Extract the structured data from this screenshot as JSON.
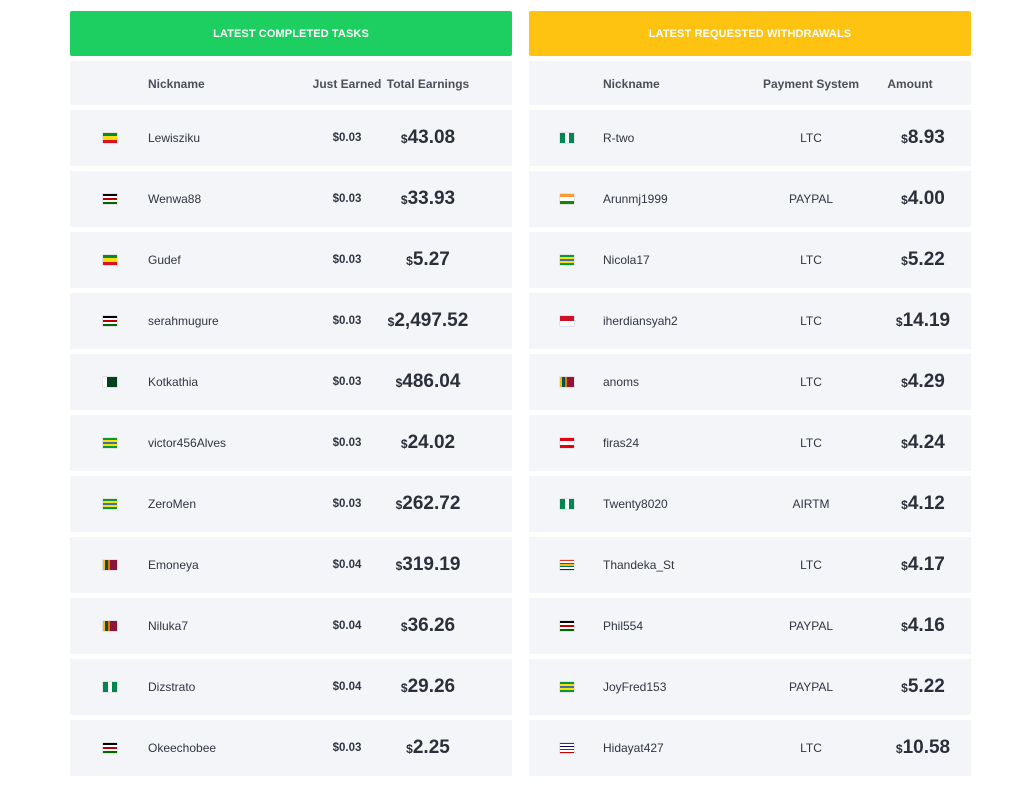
{
  "completed": {
    "title": "LATEST COMPLETED TASKS",
    "headers": {
      "nickname": "Nickname",
      "just_earned": "Just Earned",
      "total": "Total Earnings"
    },
    "currency": "$",
    "rows": [
      {
        "flag": "ethiopia",
        "nickname": "Lewisziku",
        "just": "$0.03",
        "total": "43.08"
      },
      {
        "flag": "kenya",
        "nickname": "Wenwa88",
        "just": "$0.03",
        "total": "33.93"
      },
      {
        "flag": "ethiopia",
        "nickname": "Gudef",
        "just": "$0.03",
        "total": "5.27"
      },
      {
        "flag": "kenya",
        "nickname": "serahmugure",
        "just": "$0.03",
        "total": "2,497.52"
      },
      {
        "flag": "pakistan",
        "nickname": "Kotkathia",
        "just": "$0.03",
        "total": "486.04"
      },
      {
        "flag": "brazil",
        "nickname": "victor456Alves",
        "just": "$0.03",
        "total": "24.02"
      },
      {
        "flag": "brazil",
        "nickname": "ZeroMen",
        "just": "$0.03",
        "total": "262.72"
      },
      {
        "flag": "sri-lanka",
        "nickname": "Emoneya",
        "just": "$0.04",
        "total": "319.19"
      },
      {
        "flag": "sri-lanka",
        "nickname": "Niluka7",
        "just": "$0.04",
        "total": "36.26"
      },
      {
        "flag": "nigeria",
        "nickname": "Dizstrato",
        "just": "$0.04",
        "total": "29.26"
      },
      {
        "flag": "kenya",
        "nickname": "Okeechobee",
        "just": "$0.03",
        "total": "2.25"
      }
    ]
  },
  "withdrawals": {
    "title": "LATEST REQUESTED WITHDRAWALS",
    "headers": {
      "nickname": "Nickname",
      "payment": "Payment System",
      "amount": "Amount"
    },
    "currency": "$",
    "rows": [
      {
        "flag": "nigeria",
        "nickname": "R-two",
        "payment": "LTC",
        "amount": "8.93"
      },
      {
        "flag": "india",
        "nickname": "Arunmj1999",
        "payment": "PAYPAL",
        "amount": "4.00"
      },
      {
        "flag": "brazil",
        "nickname": "Nicola17",
        "payment": "LTC",
        "amount": "5.22"
      },
      {
        "flag": "indonesia",
        "nickname": "iherdiansyah2",
        "payment": "LTC",
        "amount": "14.19"
      },
      {
        "flag": "sri-lanka",
        "nickname": "anoms",
        "payment": "LTC",
        "amount": "4.29"
      },
      {
        "flag": "tunisia",
        "nickname": "firas24",
        "payment": "LTC",
        "amount": "4.24"
      },
      {
        "flag": "nigeria",
        "nickname": "Twenty8020",
        "payment": "AIRTM",
        "amount": "4.12"
      },
      {
        "flag": "south-africa",
        "nickname": "Thandeka_St",
        "payment": "LTC",
        "amount": "4.17"
      },
      {
        "flag": "kenya",
        "nickname": "Phil554",
        "payment": "PAYPAL",
        "amount": "4.16"
      },
      {
        "flag": "brazil",
        "nickname": "JoyFred153",
        "payment": "PAYPAL",
        "amount": "5.22"
      },
      {
        "flag": "malaysia",
        "nickname": "Hidayat427",
        "payment": "LTC",
        "amount": "10.58"
      }
    ]
  },
  "colors": {
    "completed_header": "#1ccf60",
    "withdrawals_header": "#fec210",
    "row_bg": "#f4f5f8"
  }
}
